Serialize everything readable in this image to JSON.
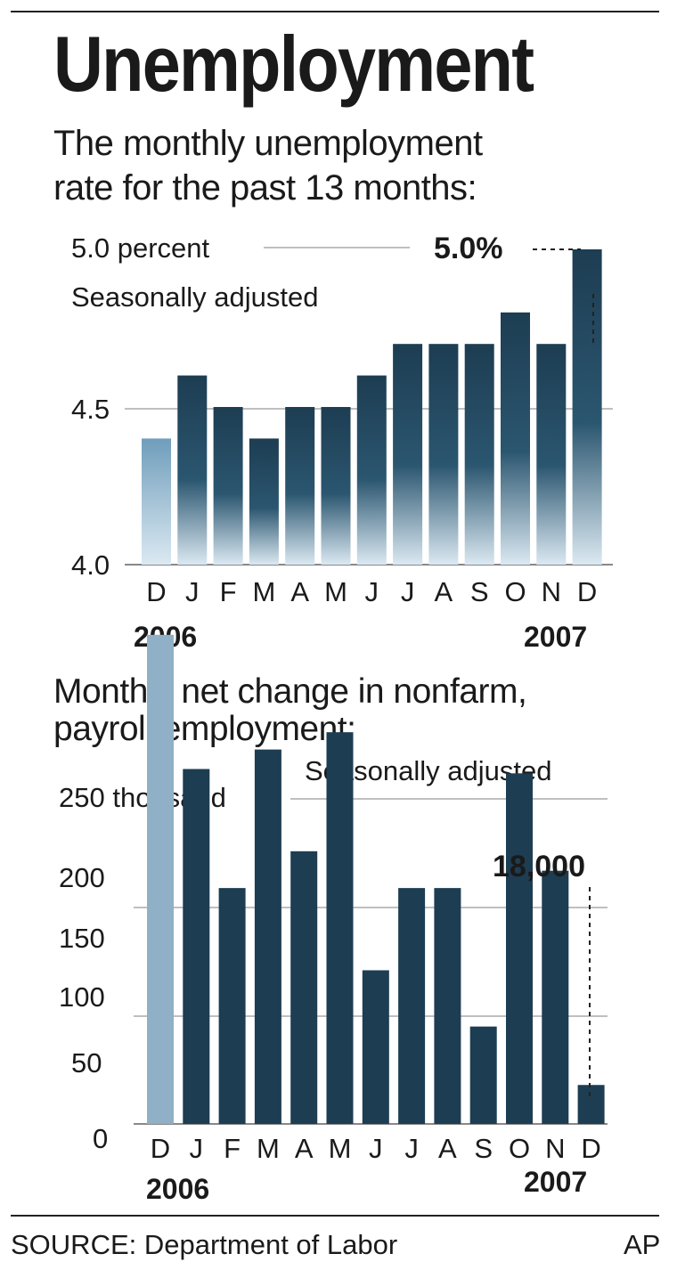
{
  "title": "Unemployment",
  "chart_data": [
    {
      "type": "bar",
      "subtitle": "The monthly unemployment rate for the past 13 months:",
      "subtitle_lines": [
        "The monthly unemployment",
        "rate for the past 13 months:"
      ],
      "note": "Seasonally adjusted",
      "unit_label": "5.0 percent",
      "yticks": [
        "4.0",
        "4.5"
      ],
      "ylim": [
        4.0,
        5.0
      ],
      "categories": [
        "D",
        "J",
        "F",
        "M",
        "A",
        "M",
        "J",
        "J",
        "A",
        "S",
        "O",
        "N",
        "D"
      ],
      "values": [
        4.4,
        4.6,
        4.5,
        4.4,
        4.5,
        4.5,
        4.6,
        4.7,
        4.7,
        4.7,
        4.8,
        4.7,
        5.0
      ],
      "year_start": "2006",
      "year_end": "2007",
      "annotation": "5.0%",
      "colors": {
        "bar": "#1d3d52",
        "highlight_start": "#6f9dbb",
        "fade": "#cfe3ef"
      },
      "grid": true
    },
    {
      "type": "bar",
      "subtitle": "Monthly net change in nonfarm, payroll employment:",
      "subtitle_lines": [
        "Monthly net change in nonfarm,",
        "payroll employment:"
      ],
      "note": "Seasonally adjusted",
      "unit_label": "250 thousand",
      "yticks": [
        "0",
        "50",
        "100",
        "150",
        "200"
      ],
      "ylim": [
        0,
        250
      ],
      "categories": [
        "D",
        "J",
        "F",
        "M",
        "A",
        "M",
        "J",
        "J",
        "A",
        "S",
        "O",
        "N",
        "D"
      ],
      "values": [
        226,
        164,
        109,
        173,
        126,
        181,
        71,
        109,
        109,
        45,
        162,
        117,
        18
      ],
      "year_start": "2006",
      "year_end": "2007",
      "annotation": "18,000",
      "colors": {
        "bar": "#1d3d52",
        "highlight": "#8fb0c6"
      },
      "grid": true
    }
  ],
  "footer": {
    "source": "SOURCE: Department of Labor",
    "credit": "AP"
  }
}
